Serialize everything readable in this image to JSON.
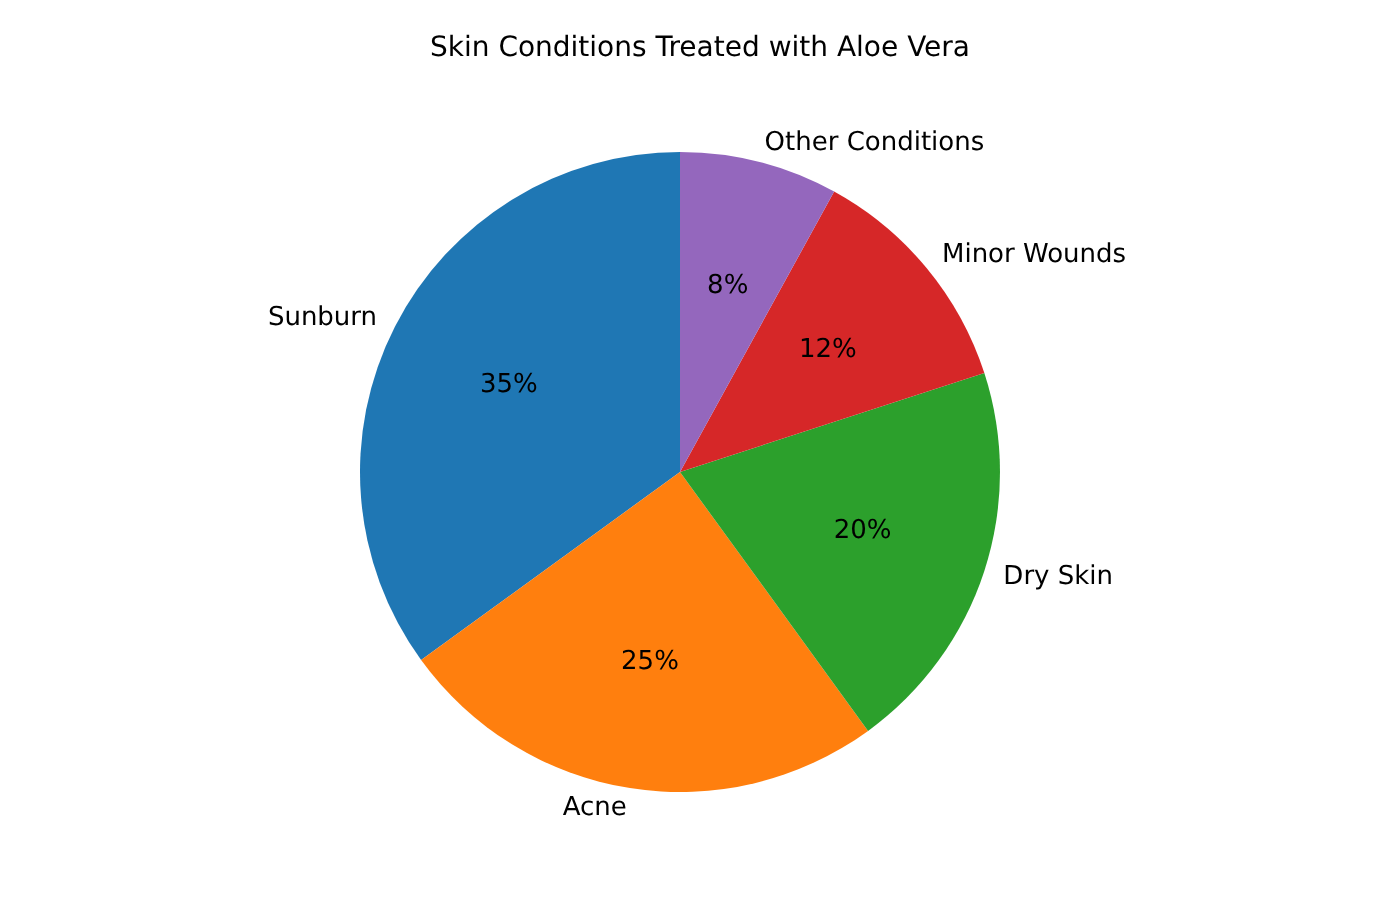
{
  "chart_data": {
    "type": "pie",
    "title": "Skin Conditions Treated with Aloe Vera",
    "categories": [
      "Sunburn",
      "Acne",
      "Dry Skin",
      "Minor Wounds",
      "Other Conditions"
    ],
    "values": [
      35,
      25,
      20,
      12,
      8
    ],
    "colors": [
      "#1f77b4",
      "#ff7f0e",
      "#2ca02c",
      "#d62728",
      "#9467bd"
    ],
    "value_labels": [
      "35%",
      "25%",
      "20%",
      "12%",
      "8%"
    ],
    "legend": false
  }
}
